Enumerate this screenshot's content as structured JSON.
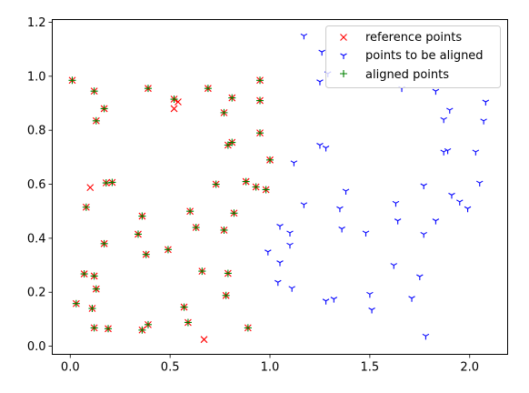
{
  "chart_data": {
    "type": "scatter",
    "title": "",
    "xlabel": "",
    "ylabel": "",
    "xlim": [
      -0.09,
      2.19
    ],
    "ylim": [
      -0.03,
      1.21
    ],
    "xticks": [
      0.0,
      0.5,
      1.0,
      1.5,
      2.0
    ],
    "xtick_labels": [
      "0.0",
      "0.5",
      "1.0",
      "1.5",
      "2.0"
    ],
    "yticks": [
      0.0,
      0.2,
      0.4,
      0.6,
      0.8,
      1.0,
      1.2
    ],
    "ytick_labels": [
      "0.0",
      "0.2",
      "0.4",
      "0.6",
      "0.8",
      "1.0",
      "1.2"
    ],
    "grid": false,
    "legend_position": "top-right",
    "series": [
      {
        "name": "reference points",
        "marker": "x",
        "color": "#ff0000",
        "points": [
          [
            0.01,
            0.985
          ],
          [
            0.12,
            0.945
          ],
          [
            0.13,
            0.835
          ],
          [
            0.17,
            0.88
          ],
          [
            0.39,
            0.955
          ],
          [
            0.52,
            0.915
          ],
          [
            0.54,
            0.905
          ],
          [
            0.52,
            0.88
          ],
          [
            0.69,
            0.955
          ],
          [
            0.77,
            0.865
          ],
          [
            0.81,
            0.92
          ],
          [
            0.79,
            0.745
          ],
          [
            0.81,
            0.755
          ],
          [
            0.95,
            0.985
          ],
          [
            0.95,
            0.91
          ],
          [
            0.95,
            0.79
          ],
          [
            1.0,
            0.69
          ],
          [
            0.18,
            0.605
          ],
          [
            0.21,
            0.607
          ],
          [
            0.1,
            0.588
          ],
          [
            0.08,
            0.515
          ],
          [
            0.73,
            0.6
          ],
          [
            0.88,
            0.61
          ],
          [
            0.93,
            0.59
          ],
          [
            0.98,
            0.58
          ],
          [
            0.36,
            0.482
          ],
          [
            0.34,
            0.415
          ],
          [
            0.38,
            0.34
          ],
          [
            0.17,
            0.38
          ],
          [
            0.6,
            0.5
          ],
          [
            0.63,
            0.44
          ],
          [
            0.77,
            0.43
          ],
          [
            0.82,
            0.493
          ],
          [
            0.49,
            0.358
          ],
          [
            0.07,
            0.268
          ],
          [
            0.12,
            0.26
          ],
          [
            0.13,
            0.212
          ],
          [
            0.03,
            0.158
          ],
          [
            0.11,
            0.14
          ],
          [
            0.12,
            0.068
          ],
          [
            0.19,
            0.065
          ],
          [
            0.36,
            0.06
          ],
          [
            0.39,
            0.08
          ],
          [
            0.57,
            0.145
          ],
          [
            0.59,
            0.088
          ],
          [
            0.66,
            0.278
          ],
          [
            0.78,
            0.188
          ],
          [
            0.79,
            0.27
          ],
          [
            0.89,
            0.068
          ],
          [
            0.67,
            0.025
          ]
        ]
      },
      {
        "name": "points to be aligned",
        "marker": "tri_down",
        "color": "#0000ff",
        "points": [
          [
            1.17,
            1.15
          ],
          [
            1.26,
            1.09
          ],
          [
            1.29,
            1.01
          ],
          [
            1.25,
            0.98
          ],
          [
            1.66,
            0.955
          ],
          [
            1.83,
            0.945
          ],
          [
            1.9,
            0.875
          ],
          [
            1.87,
            0.84
          ],
          [
            2.07,
            0.835
          ],
          [
            2.08,
            0.905
          ],
          [
            1.87,
            0.72
          ],
          [
            1.89,
            0.725
          ],
          [
            2.03,
            0.72
          ],
          [
            1.25,
            0.745
          ],
          [
            1.28,
            0.735
          ],
          [
            1.12,
            0.68
          ],
          [
            1.38,
            0.575
          ],
          [
            1.17,
            0.525
          ],
          [
            1.35,
            0.51
          ],
          [
            1.63,
            0.53
          ],
          [
            1.77,
            0.595
          ],
          [
            1.91,
            0.56
          ],
          [
            1.95,
            0.535
          ],
          [
            1.99,
            0.51
          ],
          [
            2.05,
            0.605
          ],
          [
            1.05,
            0.445
          ],
          [
            1.1,
            0.42
          ],
          [
            1.1,
            0.375
          ],
          [
            0.99,
            0.35
          ],
          [
            1.36,
            0.435
          ],
          [
            1.48,
            0.42
          ],
          [
            1.64,
            0.465
          ],
          [
            1.77,
            0.415
          ],
          [
            1.83,
            0.465
          ],
          [
            1.05,
            0.31
          ],
          [
            1.04,
            0.237
          ],
          [
            1.11,
            0.215
          ],
          [
            1.28,
            0.168
          ],
          [
            1.32,
            0.175
          ],
          [
            1.5,
            0.193
          ],
          [
            1.51,
            0.135
          ],
          [
            1.62,
            0.3
          ],
          [
            1.71,
            0.178
          ],
          [
            1.75,
            0.258
          ],
          [
            1.78,
            0.038
          ]
        ]
      },
      {
        "name": "aligned points",
        "marker": "+",
        "color": "#008000",
        "points": [
          [
            0.01,
            0.985
          ],
          [
            0.12,
            0.945
          ],
          [
            0.13,
            0.835
          ],
          [
            0.17,
            0.88
          ],
          [
            0.39,
            0.955
          ],
          [
            0.52,
            0.915
          ],
          [
            0.69,
            0.955
          ],
          [
            0.77,
            0.865
          ],
          [
            0.81,
            0.92
          ],
          [
            0.79,
            0.745
          ],
          [
            0.81,
            0.755
          ],
          [
            0.95,
            0.985
          ],
          [
            0.95,
            0.91
          ],
          [
            0.95,
            0.79
          ],
          [
            1.0,
            0.69
          ],
          [
            0.18,
            0.605
          ],
          [
            0.21,
            0.607
          ],
          [
            0.08,
            0.515
          ],
          [
            0.73,
            0.6
          ],
          [
            0.88,
            0.61
          ],
          [
            0.93,
            0.59
          ],
          [
            0.98,
            0.58
          ],
          [
            0.36,
            0.482
          ],
          [
            0.34,
            0.415
          ],
          [
            0.38,
            0.34
          ],
          [
            0.17,
            0.38
          ],
          [
            0.6,
            0.5
          ],
          [
            0.63,
            0.44
          ],
          [
            0.77,
            0.43
          ],
          [
            0.82,
            0.493
          ],
          [
            0.49,
            0.358
          ],
          [
            0.07,
            0.268
          ],
          [
            0.12,
            0.26
          ],
          [
            0.13,
            0.212
          ],
          [
            0.03,
            0.158
          ],
          [
            0.11,
            0.14
          ],
          [
            0.12,
            0.068
          ],
          [
            0.19,
            0.065
          ],
          [
            0.36,
            0.06
          ],
          [
            0.39,
            0.08
          ],
          [
            0.57,
            0.145
          ],
          [
            0.59,
            0.088
          ],
          [
            0.66,
            0.278
          ],
          [
            0.78,
            0.188
          ],
          [
            0.79,
            0.27
          ],
          [
            0.89,
            0.068
          ]
        ]
      }
    ]
  }
}
